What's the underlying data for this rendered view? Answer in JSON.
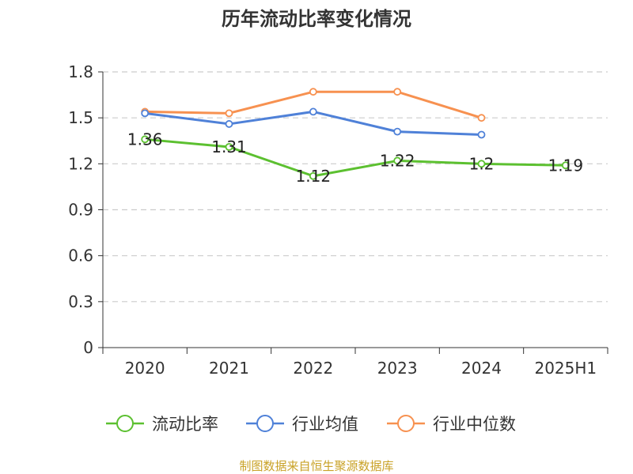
{
  "chart_data": {
    "type": "line",
    "title": "历年流动比率变化情况",
    "categories": [
      "2020",
      "2021",
      "2022",
      "2023",
      "2024",
      "2025H1"
    ],
    "ylim": [
      0,
      1.8
    ],
    "yticks": [
      "0",
      "0.3",
      "0.6",
      "0.9",
      "1.2",
      "1.5",
      "1.8"
    ],
    "grid": true,
    "legend_position": "bottom",
    "series": [
      {
        "name": "流动比率",
        "color": "#5cc030",
        "values": [
          1.36,
          1.31,
          1.12,
          1.22,
          1.2,
          1.19
        ],
        "labels": [
          "1.36",
          "1.31",
          "1.12",
          "1.22",
          "1.2",
          "1.19"
        ]
      },
      {
        "name": "行业均值",
        "color": "#4f81d8",
        "values": [
          1.53,
          1.46,
          1.54,
          1.41,
          1.39,
          null
        ]
      },
      {
        "name": "行业中位数",
        "color": "#f79150",
        "values": [
          1.54,
          1.53,
          1.67,
          1.67,
          1.5,
          null
        ]
      }
    ]
  },
  "footer": {
    "source": "制图数据来自恒生聚源数据库"
  }
}
